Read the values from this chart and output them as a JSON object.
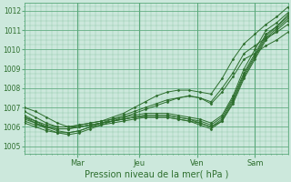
{
  "bg_color": "#cce8dc",
  "grid_color": "#5aa87a",
  "line_color": "#2d6e2d",
  "marker_color": "#2d6e2d",
  "xlabel": "Pression niveau de la mer( hPa )",
  "ylim": [
    1004.6,
    1012.4
  ],
  "yticks": [
    1005,
    1006,
    1007,
    1008,
    1009,
    1010,
    1011,
    1012
  ],
  "xlim": [
    0,
    1
  ],
  "day_labels": [
    "Mar",
    "Jeu",
    "Ven",
    "Sam"
  ],
  "day_positions": [
    0.2,
    0.435,
    0.655,
    0.875
  ],
  "n_points": 25,
  "series": [
    [
      1006.5,
      1006.3,
      1006.1,
      1006.0,
      1006.0,
      1006.1,
      1006.2,
      1006.3,
      1006.5,
      1006.7,
      1007.0,
      1007.3,
      1007.6,
      1007.8,
      1007.9,
      1007.9,
      1007.8,
      1007.7,
      1008.5,
      1009.5,
      1010.3,
      1010.8,
      1011.3,
      1011.7,
      1012.2
    ],
    [
      1006.2,
      1006.0,
      1005.8,
      1005.7,
      1005.7,
      1005.8,
      1006.0,
      1006.1,
      1006.2,
      1006.3,
      1006.4,
      1006.5,
      1006.5,
      1006.5,
      1006.4,
      1006.3,
      1006.1,
      1005.9,
      1006.3,
      1007.2,
      1008.5,
      1009.5,
      1010.5,
      1011.0,
      1011.5
    ],
    [
      1006.3,
      1006.1,
      1006.0,
      1005.9,
      1005.9,
      1006.0,
      1006.1,
      1006.2,
      1006.3,
      1006.4,
      1006.5,
      1006.5,
      1006.5,
      1006.5,
      1006.4,
      1006.3,
      1006.2,
      1006.0,
      1006.4,
      1007.4,
      1008.7,
      1009.7,
      1010.7,
      1011.2,
      1011.7
    ],
    [
      1006.8,
      1006.5,
      1006.2,
      1006.0,
      1006.0,
      1006.1,
      1006.2,
      1006.3,
      1006.4,
      1006.5,
      1006.6,
      1006.7,
      1006.7,
      1006.7,
      1006.6,
      1006.5,
      1006.4,
      1006.2,
      1006.6,
      1007.6,
      1009.0,
      1010.0,
      1011.0,
      1011.4,
      1011.9
    ],
    [
      1007.0,
      1006.8,
      1006.5,
      1006.2,
      1006.0,
      1006.0,
      1006.1,
      1006.2,
      1006.3,
      1006.4,
      1006.5,
      1006.6,
      1006.6,
      1006.6,
      1006.5,
      1006.4,
      1006.3,
      1006.1,
      1006.5,
      1007.5,
      1008.8,
      1009.8,
      1010.8,
      1011.2,
      1011.8
    ],
    [
      1006.4,
      1006.2,
      1006.0,
      1005.9,
      1005.9,
      1006.0,
      1006.1,
      1006.2,
      1006.3,
      1006.4,
      1006.5,
      1006.6,
      1006.6,
      1006.6,
      1006.5,
      1006.4,
      1006.2,
      1006.0,
      1006.3,
      1007.3,
      1008.6,
      1009.6,
      1010.6,
      1011.1,
      1011.6
    ],
    [
      1006.6,
      1006.3,
      1006.0,
      1005.8,
      1005.7,
      1005.8,
      1006.0,
      1006.2,
      1006.4,
      1006.6,
      1006.8,
      1007.0,
      1007.2,
      1007.4,
      1007.5,
      1007.6,
      1007.5,
      1007.3,
      1008.0,
      1008.8,
      1009.8,
      1010.2,
      1010.6,
      1010.9,
      1011.3
    ],
    [
      1006.5,
      1006.2,
      1005.9,
      1005.7,
      1005.6,
      1005.7,
      1005.9,
      1006.1,
      1006.3,
      1006.5,
      1006.7,
      1006.9,
      1007.1,
      1007.3,
      1007.5,
      1007.6,
      1007.5,
      1007.2,
      1007.8,
      1008.6,
      1009.5,
      1009.8,
      1010.2,
      1010.5,
      1010.9
    ]
  ]
}
